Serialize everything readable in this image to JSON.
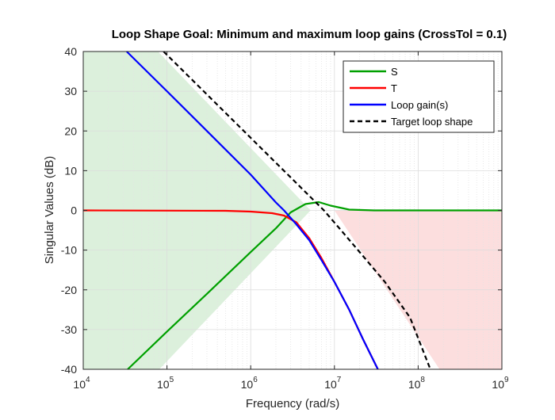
{
  "chart_data": {
    "type": "line",
    "title": "Loop Shape Goal: Minimum and maximum loop gains (CrossTol = 0.1)",
    "xlabel": "Frequency (rad/s)",
    "ylabel": "Singular Values (dB)",
    "xscale": "log",
    "xlim": [
      10000,
      1000000000
    ],
    "ylim": [
      -40,
      40
    ],
    "grid": true,
    "legend_position": "top-right",
    "x_ticks": [
      {
        "value": 10000,
        "base": "10",
        "exp": "4"
      },
      {
        "value": 100000,
        "base": "10",
        "exp": "5"
      },
      {
        "value": 1000000,
        "base": "10",
        "exp": "6"
      },
      {
        "value": 10000000,
        "base": "10",
        "exp": "7"
      },
      {
        "value": 100000000,
        "base": "10",
        "exp": "8"
      },
      {
        "value": 1000000000,
        "base": "10",
        "exp": "9"
      }
    ],
    "y_ticks": [
      {
        "value": 40,
        "label": "40"
      },
      {
        "value": 30,
        "label": "30"
      },
      {
        "value": 20,
        "label": "20"
      },
      {
        "value": 10,
        "label": "10"
      },
      {
        "value": 0,
        "label": "0"
      },
      {
        "value": -10,
        "label": "-10"
      },
      {
        "value": -20,
        "label": "-20"
      },
      {
        "value": -30,
        "label": "-30"
      },
      {
        "value": -40,
        "label": "-40"
      }
    ],
    "regions": [
      {
        "kind": "min-gain",
        "color": "#dcf0dc",
        "x": [
          10000,
          10000,
          81000,
          5200000,
          78000
        ],
        "y": [
          40,
          -40,
          -40,
          0,
          40
        ]
      },
      {
        "kind": "max-gain",
        "color": "#fcdede",
        "x": [
          10000000,
          1000000000,
          1000000000,
          180000000
        ],
        "y": [
          0,
          0,
          -40,
          -40
        ]
      }
    ],
    "series": [
      {
        "name": "S",
        "color": "#00a000",
        "style": "solid",
        "x": [
          34000,
          100000,
          300000,
          1000000,
          2000000,
          3000000,
          4500000,
          6500000,
          9000000,
          15000000,
          30000000,
          100000000,
          1000000000
        ],
        "y": [
          -40,
          -30.5,
          -21,
          -10.5,
          -4.5,
          -0.5,
          1.6,
          2.1,
          1.2,
          0.2,
          0,
          0,
          0
        ]
      },
      {
        "name": "T",
        "color": "#ff0000",
        "style": "solid",
        "x": [
          10000,
          500000,
          1000000,
          1800000,
          2500000,
          3500000,
          5000000,
          7000000,
          10000000,
          15000000,
          22000000,
          33000000
        ],
        "y": [
          0,
          -0.1,
          -0.3,
          -0.7,
          -1.3,
          -3,
          -7,
          -12,
          -18,
          -25,
          -32.5,
          -40
        ]
      },
      {
        "name": "Loop gain(s)",
        "color": "#0000ff",
        "style": "solid",
        "x": [
          33000,
          100000,
          300000,
          1000000,
          2000000,
          2500000,
          3500000,
          5000000,
          7000000,
          10000000,
          15000000,
          22000000,
          33000000
        ],
        "y": [
          40,
          30,
          20,
          9,
          2,
          0,
          -3.5,
          -7.5,
          -12.5,
          -18,
          -25,
          -32.5,
          -40
        ]
      },
      {
        "name": "Target loop shape",
        "color": "#000000",
        "style": "dashed",
        "x": [
          91000,
          7500000,
          12000000,
          20000000,
          40000000,
          80000000,
          140000000
        ],
        "y": [
          40,
          0,
          -5,
          -10.5,
          -18,
          -27,
          -40
        ]
      }
    ]
  }
}
